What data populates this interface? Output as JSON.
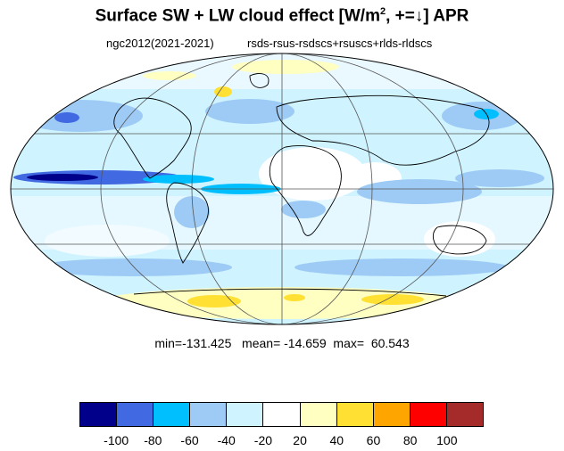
{
  "title": {
    "main": "Surface SW + LW cloud effect [W/m",
    "sup": "2",
    "rest": ", +=↓]  APR"
  },
  "subtitle": {
    "left": "ngc2012(2021-2021)",
    "right": "rsds-rsus-rsdscs+rsuscs+rlds-rldscs"
  },
  "stats": {
    "min_label": "min=",
    "min": "-131.425",
    "mean_label": "mean=",
    "mean": "-14.659",
    "max_label": "max=",
    "max": "60.543"
  },
  "colorbar": {
    "colors": [
      "#00008b",
      "#4169e1",
      "#00bfff",
      "#9ecbf5",
      "#cff3ff",
      "#ffffff",
      "#ffffc2",
      "#ffe033",
      "#ffa500",
      "#ff0000",
      "#a52a2a"
    ],
    "ticks": [
      "-100",
      "-80",
      "-60",
      "-40",
      "-20",
      "20",
      "40",
      "60",
      "80",
      "100"
    ]
  },
  "map": {
    "projection": "Mollweide",
    "variable": "Surface SW + LW cloud effect",
    "month": "APR"
  }
}
